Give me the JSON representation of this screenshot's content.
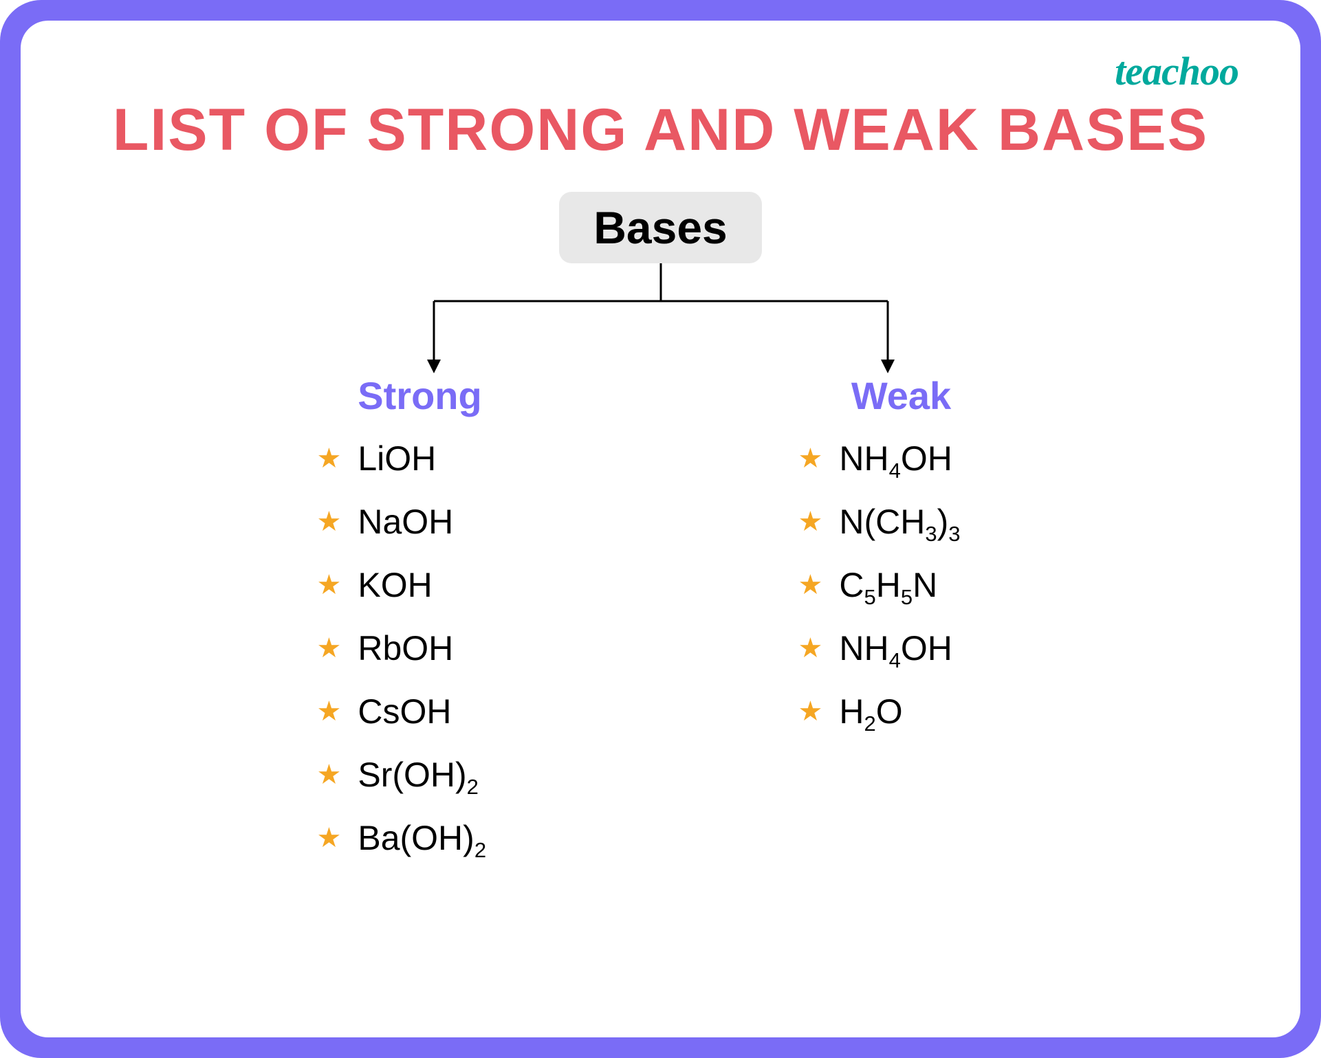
{
  "brand": {
    "logo_text": "teachoo",
    "logo_color": "#00a99d"
  },
  "title": {
    "text": "LIST OF STRONG AND WEAK BASES",
    "color": "#e95863",
    "fontsize": 86
  },
  "diagram": {
    "type": "tree",
    "root": {
      "label": "Bases",
      "bg": "#e8e8e8",
      "color": "#000000",
      "fontsize": 66
    },
    "connector": {
      "stroke": "#000000",
      "stroke_width": 3,
      "arrowhead": true
    },
    "branches": [
      {
        "header": "Strong",
        "header_color": "#7a6cf6",
        "header_fontsize": 56,
        "bullet_color": "#f5a623",
        "item_color": "#000000",
        "item_fontsize": 50,
        "items": [
          {
            "formula_html": "LiOH"
          },
          {
            "formula_html": "NaOH"
          },
          {
            "formula_html": "KOH"
          },
          {
            "formula_html": "RbOH"
          },
          {
            "formula_html": "CsOH"
          },
          {
            "formula_html": "Sr(OH)<sub>2</sub>"
          },
          {
            "formula_html": "Ba(OH)<sub>2</sub>"
          }
        ]
      },
      {
        "header": "Weak",
        "header_color": "#7a6cf6",
        "header_fontsize": 56,
        "bullet_color": "#f5a623",
        "item_color": "#000000",
        "item_fontsize": 50,
        "items": [
          {
            "formula_html": "NH<sub>4</sub>OH"
          },
          {
            "formula_html": "N(CH<sub>3</sub>)<sub>3</sub>"
          },
          {
            "formula_html": "C<sub>5</sub>H<sub>5</sub>N"
          },
          {
            "formula_html": "NH<sub>4</sub>OH"
          },
          {
            "formula_html": "H<sub>2</sub>O"
          }
        ]
      }
    ]
  },
  "frame": {
    "border_color": "#7a6cf6",
    "inner_bg": "#ffffff",
    "outer_radius": 60,
    "inner_radius": 40,
    "border_thickness": 30
  }
}
